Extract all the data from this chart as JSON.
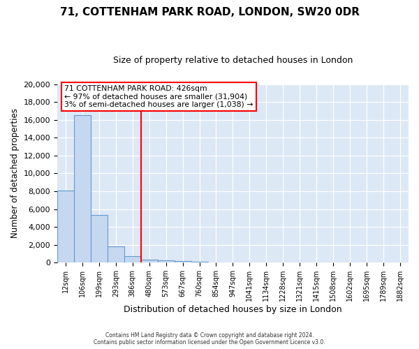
{
  "title": "71, COTTENHAM PARK ROAD, LONDON, SW20 0DR",
  "subtitle": "Size of property relative to detached houses in London",
  "xlabel": "Distribution of detached houses by size in London",
  "ylabel": "Number of detached properties",
  "bar_labels": [
    "12sqm",
    "106sqm",
    "199sqm",
    "293sqm",
    "386sqm",
    "480sqm",
    "573sqm",
    "667sqm",
    "760sqm",
    "854sqm",
    "947sqm",
    "1041sqm",
    "1134sqm",
    "1228sqm",
    "1321sqm",
    "1415sqm",
    "1508sqm",
    "1602sqm",
    "1695sqm",
    "1789sqm",
    "1882sqm"
  ],
  "bar_values": [
    8100,
    16500,
    5300,
    1850,
    700,
    350,
    220,
    150,
    100,
    0,
    0,
    0,
    0,
    0,
    0,
    0,
    0,
    0,
    0,
    0,
    0
  ],
  "bar_color": "#c5d8f0",
  "bar_edgecolor": "#6699cc",
  "vline_color": "red",
  "ylim": [
    0,
    20000
  ],
  "yticks": [
    0,
    2000,
    4000,
    6000,
    8000,
    10000,
    12000,
    14000,
    16000,
    18000,
    20000
  ],
  "annotation_title": "71 COTTENHAM PARK ROAD: 426sqm",
  "annotation_line1": "← 97% of detached houses are smaller (31,904)",
  "annotation_line2": "3% of semi-detached houses are larger (1,038) →",
  "footer_line1": "Contains HM Land Registry data © Crown copyright and database right 2024.",
  "footer_line2": "Contains public sector information licensed under the Open Government Licence v3.0.",
  "bg_color": "#ffffff",
  "plot_bg_color": "#dce8f5"
}
